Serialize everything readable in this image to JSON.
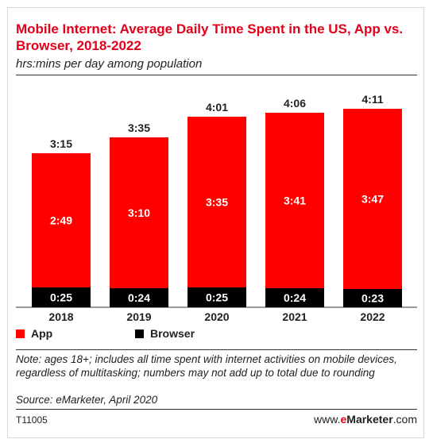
{
  "header": {
    "title": "Mobile Internet: Average Daily Time Spent in the US, App vs. Browser, 2018-2022",
    "subtitle": "hrs:mins per day among population"
  },
  "legend": {
    "app": "App",
    "browser": "Browser"
  },
  "footer": {
    "note": "Note: ages 18+; includes all time spent with internet activities on mobile devices, regardless of multitasking; numbers may not add up to total due to rounding",
    "source": "Source: eMarketer, April 2020",
    "code": "T11005",
    "brand_prefix": "www.",
    "brand_e": "e",
    "brand_name": "Marketer",
    "brand_suffix": ".com"
  },
  "colors": {
    "app": "#ff0000",
    "browser": "#000000",
    "title": "#e2001a"
  },
  "chart_data": {
    "type": "bar",
    "stacked": true,
    "categories": [
      "2018",
      "2019",
      "2020",
      "2021",
      "2022"
    ],
    "series": [
      {
        "name": "Browser",
        "values": [
          25,
          24,
          25,
          24,
          23
        ],
        "labels": [
          "0:25",
          "0:24",
          "0:25",
          "0:24",
          "0:23"
        ]
      },
      {
        "name": "App",
        "values": [
          169,
          190,
          215,
          221,
          227
        ],
        "labels": [
          "2:49",
          "3:10",
          "3:35",
          "3:41",
          "3:47"
        ]
      }
    ],
    "totals": [
      195,
      215,
      241,
      246,
      251
    ],
    "total_labels": [
      "3:15",
      "3:35",
      "4:01",
      "4:06",
      "4:11"
    ],
    "unit": "minutes",
    "ylim": [
      0,
      300
    ],
    "grid": false,
    "legend_position": "bottom-left"
  }
}
